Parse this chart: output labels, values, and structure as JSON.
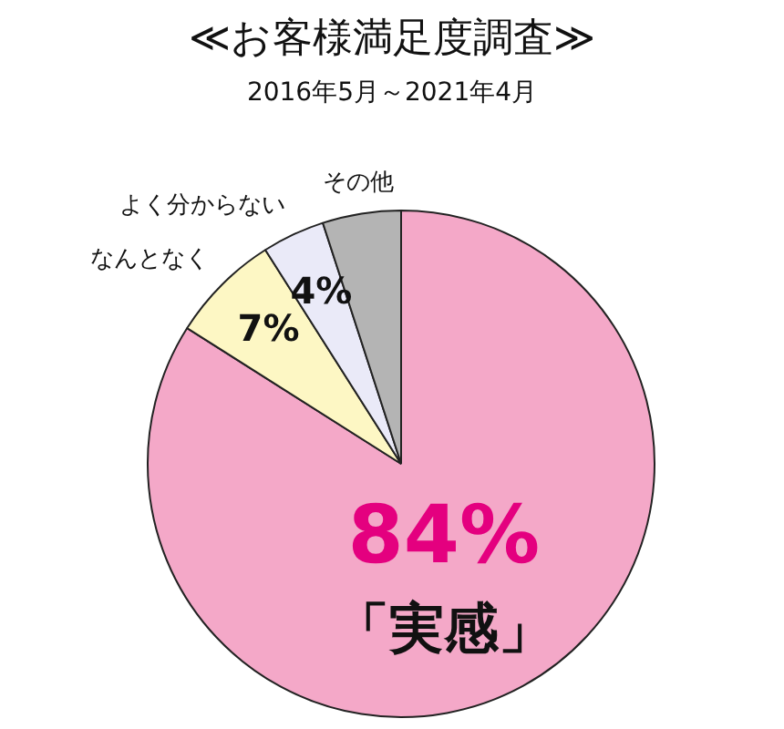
{
  "chart_data": {
    "type": "pie",
    "title": "≪お客様満足度調査≫",
    "subtitle": "2016年5月～2021年4月",
    "categories": [
      "「実感」",
      "なんとなく",
      "よく分からない",
      "その他"
    ],
    "values": [
      84,
      7,
      4,
      5
    ],
    "colors": [
      "#f4a8c8",
      "#fdf7c4",
      "#eaeaf8",
      "#b4b4b4"
    ],
    "value_labels": [
      "84%",
      "7%",
      "4%",
      null
    ]
  }
}
